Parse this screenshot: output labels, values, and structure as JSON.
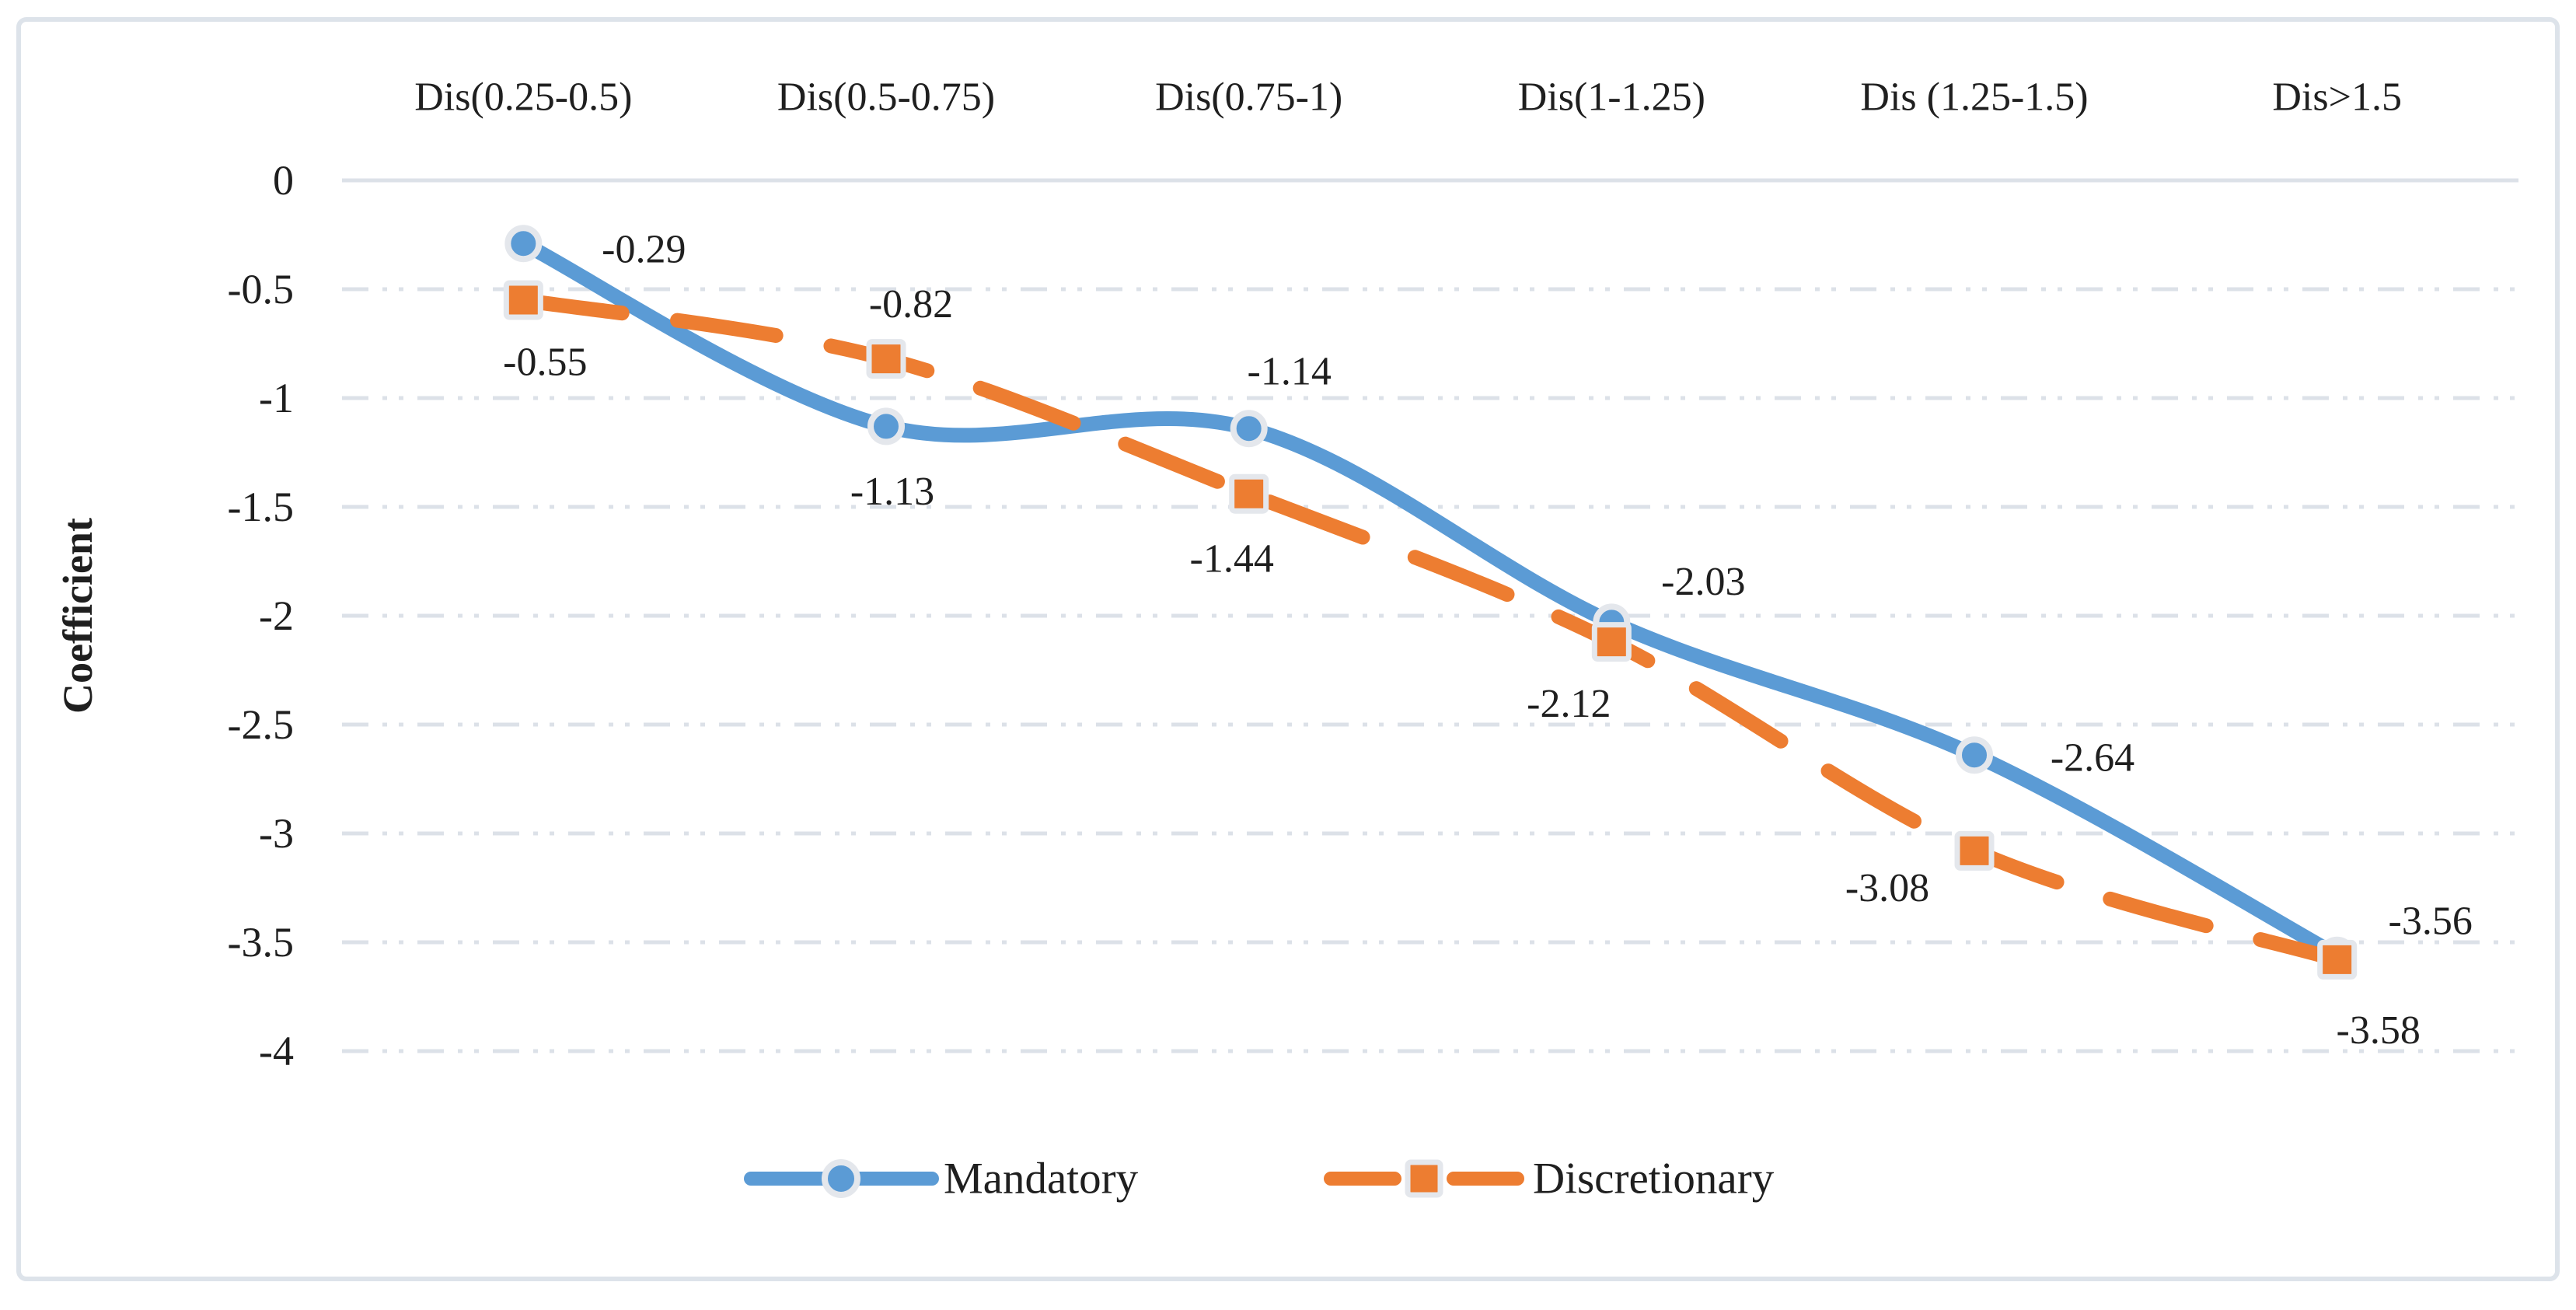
{
  "figure": {
    "background_color": "#ffffff",
    "border_color": "#dde3ea",
    "grid_color": "#dce1e8",
    "text_color": "#1f1f1f"
  },
  "chart_data": {
    "type": "line",
    "categories": [
      "Dis(0.25-0.5)",
      "Dis(0.5-0.75)",
      "Dis(0.75-1)",
      "Dis(1-1.25)",
      "Dis (1.25-1.5)",
      "Dis>1.5"
    ],
    "xlabel": "",
    "ylabel": "Coefficient",
    "ylim": [
      -4,
      0
    ],
    "yticks": [
      0,
      -0.5,
      -1,
      -1.5,
      -2,
      -2.5,
      -3,
      -3.5,
      -4
    ],
    "ytick_labels": [
      "0",
      "-0.5",
      "-1",
      "-1.5",
      "-2",
      "-2.5",
      "-3",
      "-3.5",
      "-4"
    ],
    "grid": "horizontal dash-dot",
    "legend_position": "bottom-center",
    "x_axis_position": "top",
    "series": [
      {
        "name": "Mandatory",
        "color": "#5B9BD5",
        "marker": "circle",
        "line_style": "solid",
        "smooth": true,
        "values": [
          -0.29,
          -1.13,
          -1.14,
          -2.03,
          -2.64,
          -3.56
        ],
        "labels": [
          "-0.29",
          "-1.13",
          "-1.14",
          "-2.03",
          "-2.64",
          "-3.56"
        ]
      },
      {
        "name": "Discretionary",
        "color": "#ED7D31",
        "marker": "square",
        "line_style": "dashed",
        "smooth": true,
        "values": [
          -0.55,
          -0.82,
          -1.44,
          -2.12,
          -3.08,
          -3.58
        ],
        "labels": [
          "-0.55",
          "-0.82",
          "-1.44",
          "-2.12",
          "-3.08",
          "-3.58"
        ]
      }
    ]
  }
}
